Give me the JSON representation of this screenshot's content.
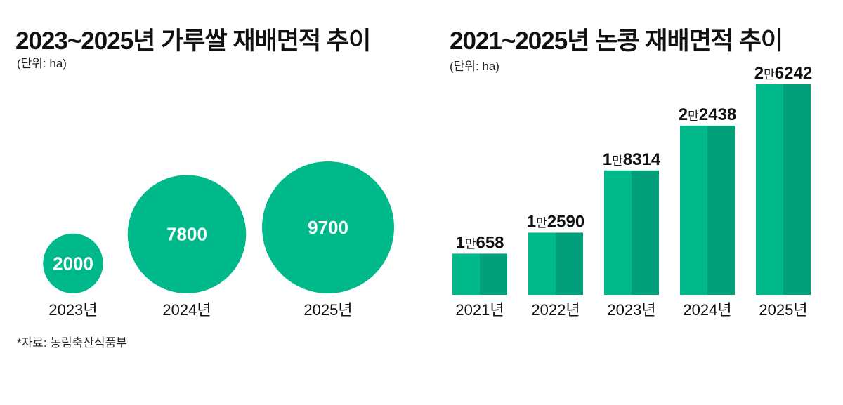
{
  "footnote": "*자료: 농림축산식품부",
  "colors": {
    "primary": "#00b98a",
    "primary_dark": "#02a07a"
  },
  "chart_data": [
    {
      "type": "bubble",
      "title": "2023~2025년 가루쌀 재배면적 추이",
      "unit": "(단위: ha)",
      "categories": [
        "2023년",
        "2024년",
        "2025년"
      ],
      "values": [
        2000,
        7800,
        9700
      ],
      "value_labels": [
        "2000",
        "7800",
        "9700"
      ]
    },
    {
      "type": "bar",
      "title": "2021~2025년 논콩 재배면적 추이",
      "unit": "(단위: ha)",
      "categories": [
        "2021년",
        "2022년",
        "2023년",
        "2024년",
        "2025년"
      ],
      "values": [
        10658,
        12590,
        18314,
        22438,
        26242
      ],
      "value_labels": [
        {
          "man": "1",
          "unit": "만",
          "rest": "658"
        },
        {
          "man": "1",
          "unit": "만",
          "rest": "2590"
        },
        {
          "man": "1",
          "unit": "만",
          "rest": "8314"
        },
        {
          "man": "2",
          "unit": "만",
          "rest": "2438"
        },
        {
          "man": "2",
          "unit": "만",
          "rest": "6242"
        }
      ]
    }
  ]
}
